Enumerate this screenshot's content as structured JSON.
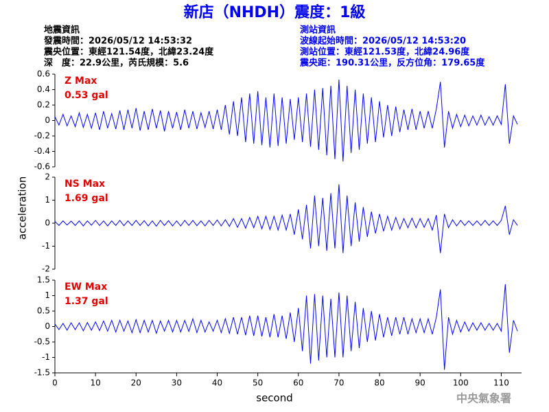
{
  "header": {
    "title": "新店（NHDH）震度：1級",
    "left": [
      "地震資訊",
      "發震時間：2026/05/12 14:53:32",
      "震央位置：東經121.54度，北緯23.24度",
      "深　度：22.9公里，芮氏規模：5.6"
    ],
    "right": [
      "測站資訊",
      "波線起始時間：2026/05/12 14:53:20",
      "測站位置：東經121.53度，北緯24.96度",
      "震央距：190.31公里，反方位角：179.65度"
    ]
  },
  "footer": "中央氣象署",
  "chart_data": {
    "type": "line",
    "x_label": "second",
    "y_label": "acceleration",
    "xlim": [
      0,
      115
    ],
    "xticks": [
      0,
      10,
      20,
      30,
      40,
      50,
      60,
      70,
      80,
      90,
      100,
      110
    ],
    "x": [
      0,
      1,
      2,
      3,
      4,
      5,
      6,
      7,
      8,
      9,
      10,
      11,
      12,
      13,
      14,
      15,
      16,
      17,
      18,
      19,
      20,
      21,
      22,
      23,
      24,
      25,
      26,
      27,
      28,
      29,
      30,
      31,
      32,
      33,
      34,
      35,
      36,
      37,
      38,
      39,
      40,
      41,
      42,
      43,
      44,
      45,
      46,
      47,
      48,
      49,
      50,
      51,
      52,
      53,
      54,
      55,
      56,
      57,
      58,
      59,
      60,
      61,
      62,
      63,
      64,
      65,
      66,
      67,
      68,
      69,
      70,
      71,
      72,
      73,
      74,
      75,
      76,
      77,
      78,
      79,
      80,
      81,
      82,
      83,
      84,
      85,
      86,
      87,
      88,
      89,
      90,
      91,
      92,
      93,
      94,
      95,
      96,
      97,
      98,
      99,
      100,
      101,
      102,
      103,
      104,
      105,
      106,
      107,
      108,
      109,
      110,
      111,
      112,
      113,
      114
    ],
    "panels": [
      {
        "label": "Z Max",
        "max_label": "0.53 gal",
        "color": "#0000ff",
        "ylim": [
          -0.6,
          0.6
        ],
        "yticks": [
          0.6,
          0.4,
          0.2,
          0,
          -0.2,
          -0.4,
          -0.6
        ],
        "values": [
          0.05,
          -0.06,
          0.08,
          -0.07,
          0.06,
          -0.08,
          0.1,
          -0.09,
          0.08,
          -0.1,
          0.1,
          -0.12,
          0.12,
          -0.1,
          0.09,
          -0.11,
          0.13,
          -0.12,
          0.14,
          -0.1,
          0.16,
          -0.13,
          0.12,
          -0.12,
          0.15,
          -0.1,
          0.13,
          -0.14,
          0.12,
          -0.1,
          0.11,
          -0.12,
          0.14,
          -0.1,
          0.12,
          -0.11,
          0.1,
          -0.09,
          0.12,
          -0.11,
          0.14,
          -0.12,
          0.2,
          -0.18,
          0.25,
          -0.2,
          0.3,
          -0.28,
          0.35,
          -0.3,
          0.38,
          -0.32,
          0.3,
          -0.35,
          0.35,
          -0.33,
          0.3,
          -0.3,
          0.28,
          -0.25,
          0.3,
          -0.28,
          0.35,
          -0.34,
          0.4,
          -0.38,
          0.42,
          -0.45,
          0.45,
          -0.5,
          0.53,
          -0.53,
          0.45,
          -0.42,
          0.4,
          -0.38,
          0.35,
          -0.3,
          0.3,
          -0.28,
          0.25,
          -0.22,
          0.2,
          -0.2,
          0.18,
          -0.15,
          0.14,
          -0.12,
          0.15,
          -0.12,
          0.12,
          -0.1,
          0.12,
          -0.1,
          0.15,
          0.5,
          -0.35,
          0.12,
          -0.1,
          0.08,
          -0.08,
          0.07,
          -0.07,
          0.06,
          -0.06,
          0.07,
          -0.06,
          0.05,
          -0.06,
          0.06,
          -0.05,
          0.47,
          -0.3,
          0.06,
          -0.05
        ]
      },
      {
        "label": "NS Max",
        "max_label": "1.69 gal",
        "color": "#0000ff",
        "ylim": [
          -2,
          2
        ],
        "yticks": [
          2,
          1,
          0,
          -1,
          -2
        ],
        "values": [
          0.08,
          -0.1,
          0.1,
          -0.08,
          0.09,
          -0.1,
          0.1,
          -0.12,
          0.1,
          -0.09,
          0.12,
          -0.1,
          0.1,
          -0.12,
          0.1,
          -0.1,
          0.12,
          -0.11,
          0.1,
          -0.1,
          0.12,
          -0.1,
          0.11,
          -0.12,
          0.1,
          -0.13,
          0.12,
          -0.1,
          0.11,
          -0.12,
          0.1,
          -0.12,
          0.12,
          -0.1,
          0.12,
          -0.11,
          0.1,
          -0.12,
          0.12,
          -0.1,
          0.14,
          -0.12,
          0.15,
          -0.14,
          0.2,
          -0.18,
          0.2,
          -0.22,
          0.25,
          -0.2,
          0.3,
          -0.25,
          0.3,
          -0.28,
          0.3,
          -0.3,
          0.35,
          -0.3,
          0.4,
          -0.5,
          0.6,
          -0.7,
          0.8,
          -1.1,
          1.2,
          -1.0,
          1.1,
          -1.2,
          1.3,
          -1.1,
          1.69,
          -1.3,
          1.2,
          -1.0,
          0.9,
          -0.8,
          0.7,
          -0.6,
          0.5,
          -0.45,
          0.4,
          -0.35,
          0.3,
          -0.3,
          0.25,
          -0.25,
          0.2,
          -0.2,
          0.22,
          -0.2,
          0.2,
          -0.18,
          0.2,
          -0.3,
          0.35,
          -1.3,
          0.4,
          -0.2,
          0.15,
          -0.12,
          0.12,
          -0.1,
          0.1,
          -0.1,
          0.1,
          -0.1,
          0.12,
          -0.1,
          0.1,
          -0.1,
          0.12,
          0.75,
          -0.5,
          0.15,
          -0.1
        ]
      },
      {
        "label": "EW Max",
        "max_label": "1.37 gal",
        "color": "#0000ff",
        "ylim": [
          -1.5,
          1.5
        ],
        "yticks": [
          1.5,
          1,
          0.5,
          0,
          -0.5,
          -1,
          -1.5
        ],
        "values": [
          0.08,
          -0.1,
          0.1,
          -0.12,
          0.12,
          -0.1,
          0.12,
          -0.14,
          0.13,
          -0.12,
          0.15,
          -0.13,
          0.18,
          -0.15,
          0.2,
          -0.18,
          0.2,
          -0.15,
          0.18,
          -0.2,
          0.22,
          -0.2,
          0.2,
          -0.18,
          0.2,
          -0.22,
          0.18,
          -0.15,
          0.2,
          -0.18,
          0.2,
          -0.18,
          0.2,
          -0.16,
          0.25,
          -0.2,
          0.2,
          -0.18,
          0.15,
          -0.15,
          0.2,
          -0.2,
          0.25,
          -0.22,
          0.3,
          -0.25,
          0.3,
          -0.28,
          0.35,
          -0.3,
          0.35,
          -0.32,
          0.3,
          -0.35,
          0.4,
          -0.35,
          0.35,
          -0.4,
          0.45,
          -0.5,
          0.6,
          -0.8,
          1.0,
          -1.2,
          1.05,
          -1.1,
          1.0,
          -1.0,
          0.9,
          -1.0,
          1.1,
          -1.0,
          1.0,
          -0.8,
          0.8,
          -0.7,
          0.6,
          -0.5,
          0.5,
          -0.45,
          0.4,
          -0.35,
          0.3,
          -0.3,
          0.3,
          -0.25,
          0.3,
          -0.25,
          0.25,
          -0.2,
          0.25,
          -0.2,
          0.25,
          -0.25,
          0.3,
          1.2,
          -1.4,
          0.3,
          -0.25,
          0.2,
          -0.18,
          0.15,
          -0.15,
          0.12,
          -0.12,
          0.12,
          -0.12,
          0.1,
          -0.12,
          0.1,
          -0.15,
          1.37,
          -0.85,
          0.2,
          -0.15
        ]
      }
    ]
  }
}
